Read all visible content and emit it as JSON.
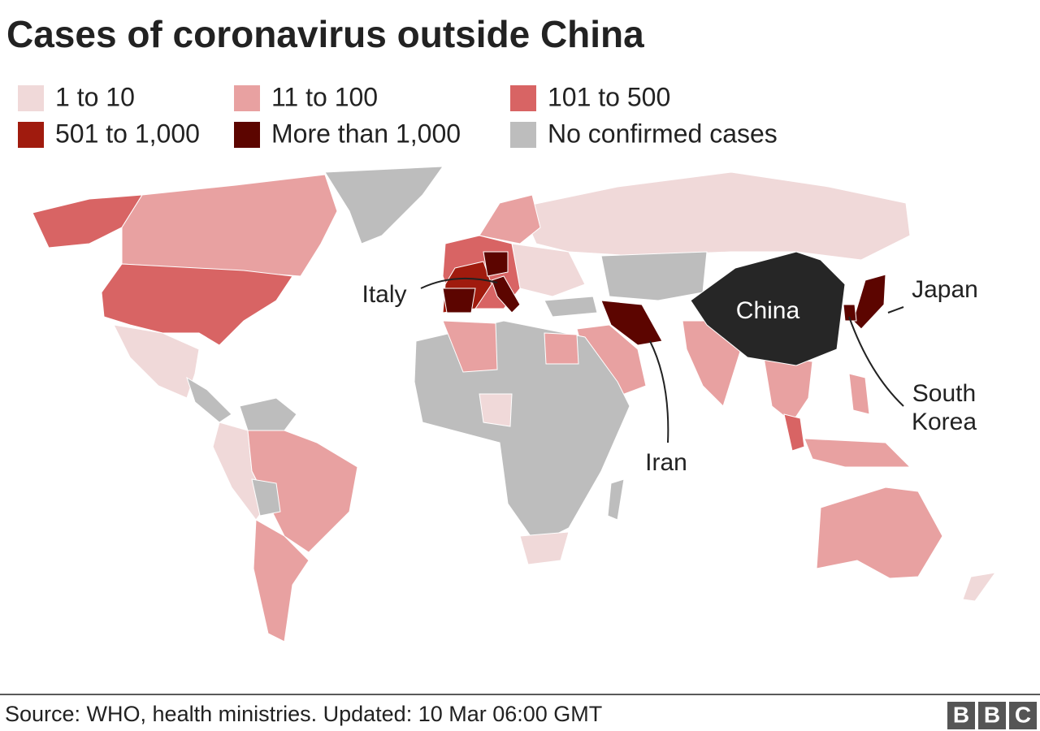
{
  "header": {
    "title": "Cases of coronavirus outside China"
  },
  "legend": [
    {
      "label": "1 to 10",
      "color": "#f0d9d9"
    },
    {
      "label": "11 to 100",
      "color": "#e8a1a1"
    },
    {
      "label": "101 to 500",
      "color": "#d86464"
    },
    {
      "label": "501 to 1,000",
      "color": "#a01b0e"
    },
    {
      "label": "More than 1,000",
      "color": "#5c0500"
    },
    {
      "label": "No confirmed cases",
      "color": "#bdbdbd"
    }
  ],
  "annotations": {
    "china": "China",
    "italy": "Italy",
    "japan": "Japan",
    "south_korea": [
      "South",
      "Korea"
    ],
    "iran": "Iran"
  },
  "footer": {
    "source": "Source: WHO, health ministries. Updated: 10 Mar 06:00 GMT",
    "logo": [
      "B",
      "B",
      "C"
    ]
  }
}
